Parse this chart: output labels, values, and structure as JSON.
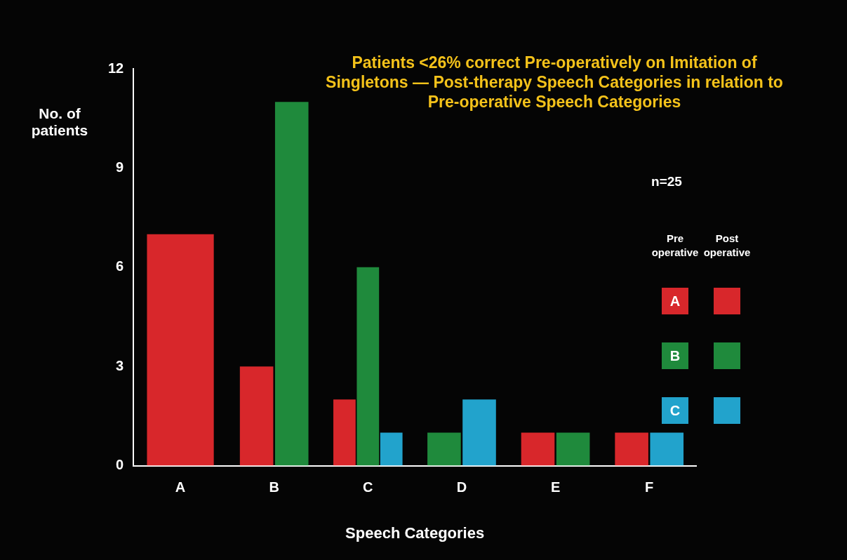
{
  "chart_data": {
    "type": "bar",
    "title": "Patients <26% correct Pre-operatively on Imitation of Singletons — Post-therapy Speech Categories in relation to Pre-operative Speech Categories",
    "xlabel": "Speech Categories",
    "ylabel": "No. of patients",
    "legend_title": "Pre operative",
    "annotations": [
      "n=25",
      "Post operative"
    ],
    "categories": [
      "A",
      "B",
      "C",
      "D",
      "E",
      "F"
    ],
    "series": [
      {
        "name": "A",
        "color": "#d8272b",
        "values": [
          7,
          3,
          2,
          null,
          1,
          1
        ]
      },
      {
        "name": "B",
        "color": "#1f8a3c",
        "values": [
          null,
          11,
          6,
          1,
          1,
          null
        ]
      },
      {
        "name": "C",
        "color": "#22a3cc",
        "values": [
          null,
          null,
          1,
          2,
          null,
          1
        ]
      }
    ],
    "ylim": [
      0,
      12
    ],
    "yticks": [
      0,
      3,
      6,
      9,
      12
    ],
    "grid": false,
    "legend": "right"
  }
}
